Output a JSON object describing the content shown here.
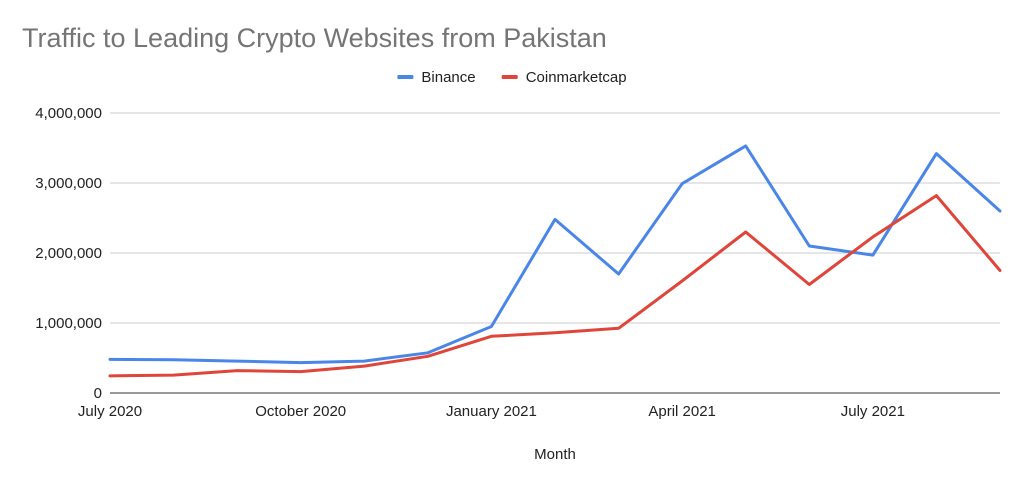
{
  "chart_data": {
    "type": "line",
    "title": "Traffic to Leading Crypto Websites from Pakistan",
    "xlabel": "Month",
    "ylabel": "",
    "ylim": [
      0,
      4000000
    ],
    "yticks": [
      0,
      1000000,
      2000000,
      3000000,
      4000000
    ],
    "ytick_labels": [
      "0",
      "1,000,000",
      "2,000,000",
      "3,000,000",
      "4,000,000"
    ],
    "x": [
      "2020-07",
      "2020-08",
      "2020-09",
      "2020-10",
      "2020-11",
      "2020-12",
      "2021-01",
      "2021-02",
      "2021-03",
      "2021-04",
      "2021-05",
      "2021-06",
      "2021-07",
      "2021-08",
      "2021-09"
    ],
    "xticks": [
      "2020-07",
      "2020-10",
      "2021-01",
      "2021-04",
      "2021-07"
    ],
    "xtick_labels": [
      "July 2020",
      "October 2020",
      "January 2021",
      "April 2021",
      "July 2021"
    ],
    "grid": true,
    "legend_position": "top",
    "series": [
      {
        "name": "Binance",
        "color": "#4a86e8",
        "values": [
          480000,
          475000,
          455000,
          435000,
          455000,
          575000,
          950000,
          2480000,
          1700000,
          2990000,
          3530000,
          2100000,
          1970000,
          3420000,
          2600000
        ]
      },
      {
        "name": "Coinmarketcap",
        "color": "#e0453a",
        "values": [
          245000,
          255000,
          320000,
          305000,
          385000,
          525000,
          810000,
          860000,
          925000,
          1600000,
          2300000,
          1550000,
          2230000,
          2820000,
          1750000
        ]
      }
    ]
  }
}
